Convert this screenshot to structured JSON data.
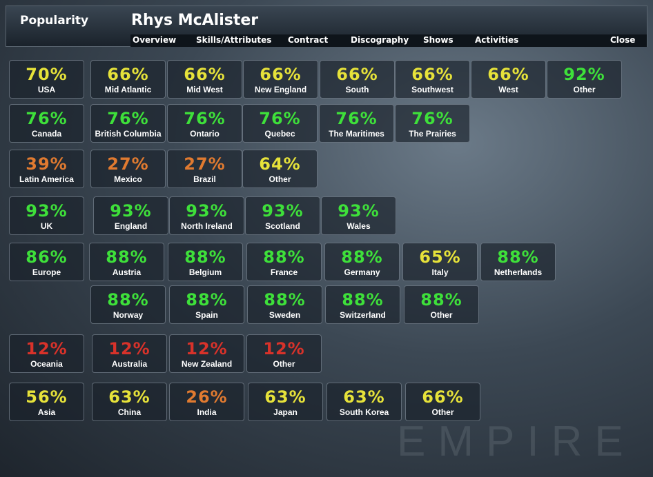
{
  "header": {
    "section": "Popularity",
    "title": "Rhys McAlister",
    "nav": [
      "Overview",
      "Skills/Attributes",
      "Contract",
      "Discography",
      "Shows",
      "Activities",
      "Close"
    ]
  },
  "watermark": "EMPIRE",
  "rows": [
    {
      "cells": [
        {
          "pct": "70%",
          "label": "USA",
          "color": "#e6e23a"
        },
        {
          "pct": "66%",
          "label": "Mid Atlantic",
          "color": "#e6e23a"
        },
        {
          "pct": "66%",
          "label": "Mid West",
          "color": "#e6e23a"
        },
        {
          "pct": "66%",
          "label": "New England",
          "color": "#e6e23a"
        },
        {
          "pct": "66%",
          "label": "South",
          "color": "#e6e23a"
        },
        {
          "pct": "66%",
          "label": "Southwest",
          "color": "#e6e23a"
        },
        {
          "pct": "66%",
          "label": "West",
          "color": "#e6e23a"
        },
        {
          "pct": "92%",
          "label": "Other",
          "color": "#3ee03a"
        }
      ]
    },
    {
      "cells": [
        {
          "pct": "76%",
          "label": "Canada",
          "color": "#3ee03a"
        },
        {
          "pct": "76%",
          "label": "British Columbia",
          "color": "#3ee03a"
        },
        {
          "pct": "76%",
          "label": "Ontario",
          "color": "#3ee03a"
        },
        {
          "pct": "76%",
          "label": "Quebec",
          "color": "#3ee03a"
        },
        {
          "pct": "76%",
          "label": "The Maritimes",
          "color": "#3ee03a"
        },
        {
          "pct": "76%",
          "label": "The Prairies",
          "color": "#3ee03a"
        }
      ]
    },
    {
      "cells": [
        {
          "pct": "39%",
          "label": "Latin America",
          "color": "#e07a30"
        },
        {
          "pct": "27%",
          "label": "Mexico",
          "color": "#e07a30"
        },
        {
          "pct": "27%",
          "label": "Brazil",
          "color": "#e07a30"
        },
        {
          "pct": "64%",
          "label": "Other",
          "color": "#e6e23a"
        }
      ]
    },
    {
      "cells": [
        {
          "pct": "93%",
          "label": "UK",
          "color": "#3ee03a"
        },
        {
          "pct": "93%",
          "label": "England",
          "color": "#3ee03a"
        },
        {
          "pct": "93%",
          "label": "North Ireland",
          "color": "#3ee03a"
        },
        {
          "pct": "93%",
          "label": "Scotland",
          "color": "#3ee03a"
        },
        {
          "pct": "93%",
          "label": "Wales",
          "color": "#3ee03a"
        }
      ]
    },
    {
      "cells": [
        {
          "pct": "86%",
          "label": "Europe",
          "color": "#3ee03a"
        },
        {
          "pct": "88%",
          "label": "Austria",
          "color": "#3ee03a"
        },
        {
          "pct": "88%",
          "label": "Belgium",
          "color": "#3ee03a"
        },
        {
          "pct": "88%",
          "label": "France",
          "color": "#3ee03a"
        },
        {
          "pct": "88%",
          "label": "Germany",
          "color": "#3ee03a"
        },
        {
          "pct": "65%",
          "label": "Italy",
          "color": "#e6e23a"
        },
        {
          "pct": "88%",
          "label": "Netherlands",
          "color": "#3ee03a"
        }
      ]
    },
    {
      "cells": [
        {
          "pct": "88%",
          "label": "Norway",
          "color": "#3ee03a"
        },
        {
          "pct": "88%",
          "label": "Spain",
          "color": "#3ee03a"
        },
        {
          "pct": "88%",
          "label": "Sweden",
          "color": "#3ee03a"
        },
        {
          "pct": "88%",
          "label": "Switzerland",
          "color": "#3ee03a"
        },
        {
          "pct": "88%",
          "label": "Other",
          "color": "#3ee03a"
        }
      ]
    },
    {
      "cells": [
        {
          "pct": "12%",
          "label": "Oceania",
          "color": "#d8322a"
        },
        {
          "pct": "12%",
          "label": "Australia",
          "color": "#d8322a"
        },
        {
          "pct": "12%",
          "label": "New Zealand",
          "color": "#d8322a"
        },
        {
          "pct": "12%",
          "label": "Other",
          "color": "#d8322a"
        }
      ]
    },
    {
      "cells": [
        {
          "pct": "56%",
          "label": "Asia",
          "color": "#e6e23a"
        },
        {
          "pct": "63%",
          "label": "China",
          "color": "#e6e23a"
        },
        {
          "pct": "26%",
          "label": "India",
          "color": "#e07a30"
        },
        {
          "pct": "63%",
          "label": "Japan",
          "color": "#e6e23a"
        },
        {
          "pct": "63%",
          "label": "South Korea",
          "color": "#e6e23a"
        },
        {
          "pct": "66%",
          "label": "Other",
          "color": "#e6e23a"
        }
      ]
    }
  ]
}
